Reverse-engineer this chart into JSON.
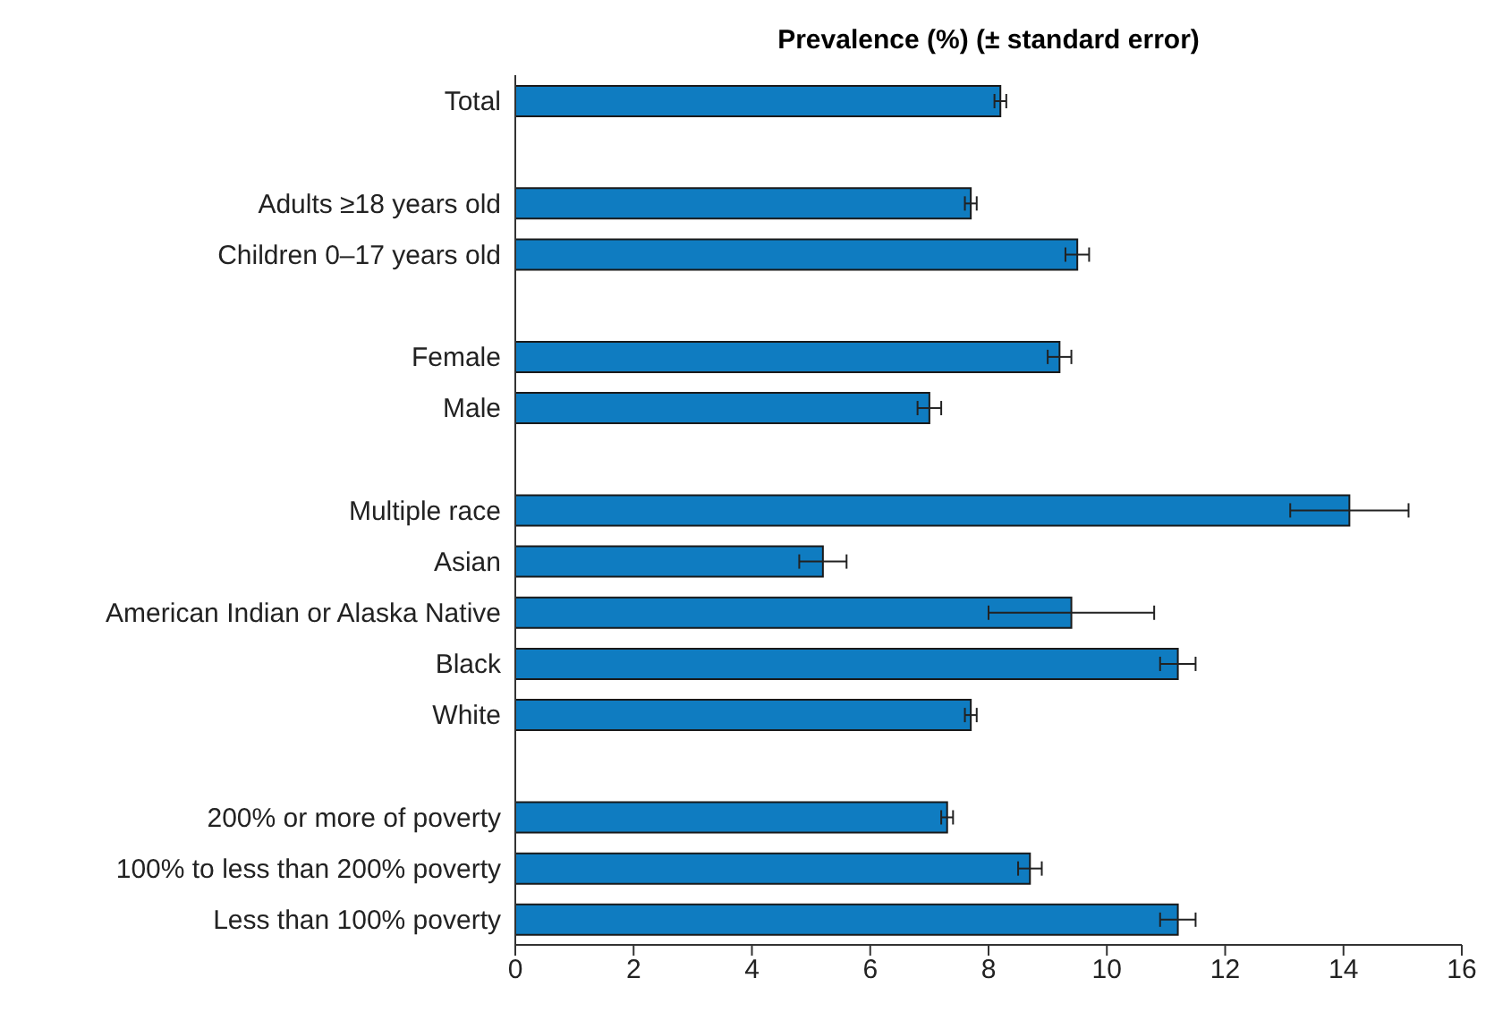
{
  "chart_data": {
    "type": "bar",
    "orientation": "horizontal",
    "title": "Prevalence (%) (± standard error)",
    "categories": [
      "Total",
      null,
      "Adults ≥18 years old",
      "Children 0–17 years old",
      null,
      "Female",
      "Male",
      null,
      "Multiple race",
      "Asian",
      "American Indian or Alaska Native",
      "Black",
      "White",
      null,
      "200% or more of poverty",
      "100% to less than 200% poverty",
      "Less than 100% poverty"
    ],
    "values": [
      8.2,
      null,
      7.7,
      9.5,
      null,
      9.2,
      7.0,
      null,
      14.1,
      5.2,
      9.4,
      11.2,
      7.7,
      null,
      7.3,
      8.7,
      11.2
    ],
    "errors": [
      0.1,
      null,
      0.1,
      0.2,
      null,
      0.2,
      0.2,
      null,
      1.0,
      0.4,
      1.4,
      0.3,
      0.1,
      null,
      0.1,
      0.2,
      0.3
    ],
    "color": "#0f7cc1",
    "xlim": [
      0,
      16
    ],
    "xticks": [
      0,
      2,
      4,
      6,
      8,
      10,
      12,
      14,
      16
    ]
  }
}
